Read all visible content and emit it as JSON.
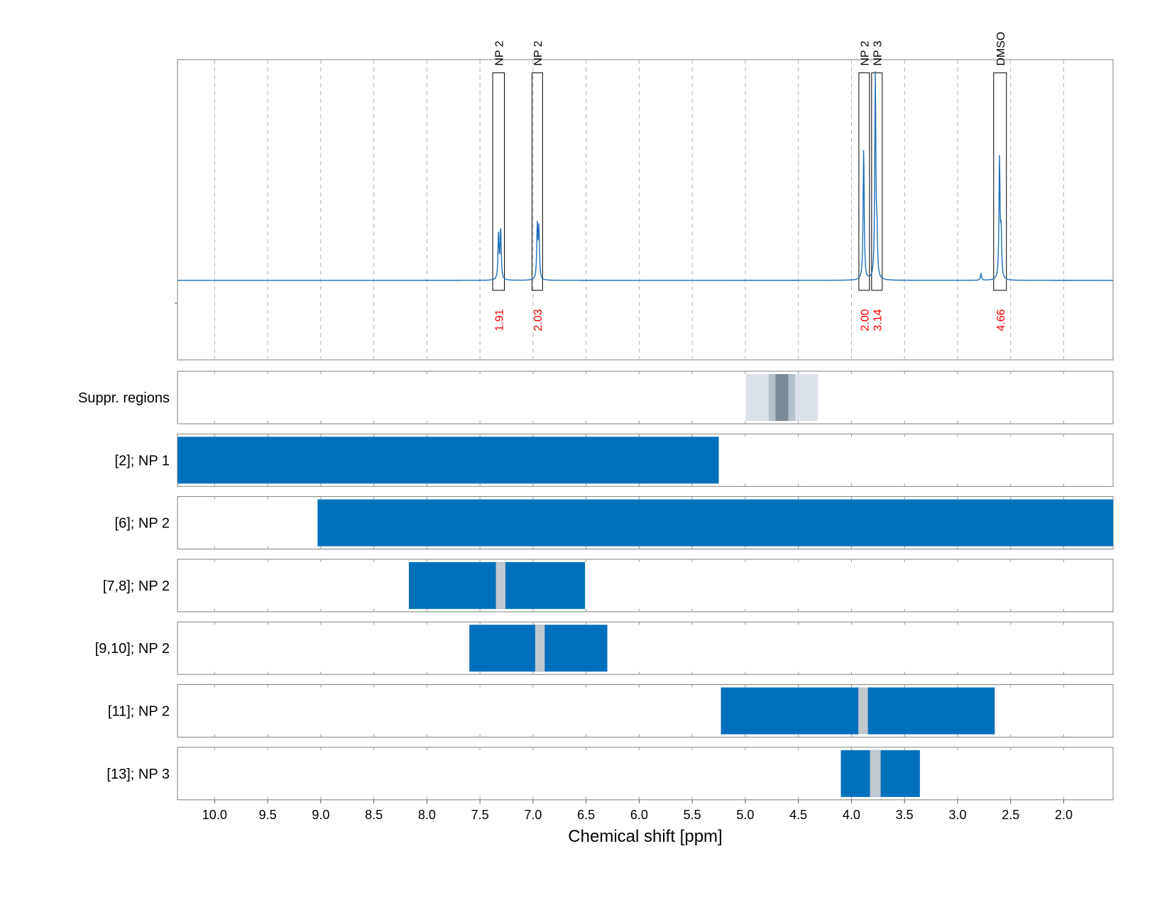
{
  "chart_data": {
    "type": "nmr-spectrum-with-tracks",
    "xlabel": "Chemical shift [ppm]",
    "xlim": [
      10.35,
      1.535
    ],
    "x_reversed": true,
    "x_ticks": [
      10.0,
      9.5,
      9.0,
      8.5,
      8.0,
      7.5,
      7.0,
      6.5,
      6.0,
      5.5,
      5.0,
      4.5,
      4.0,
      3.5,
      3.0,
      2.5,
      2.0
    ],
    "x_tick_labels": [
      "10.0",
      "9.5",
      "9.0",
      "8.5",
      "8.0",
      "7.5",
      "7.0",
      "6.5",
      "6.0",
      "5.5",
      "5.0",
      "4.5",
      "4.0",
      "3.5",
      "3.0",
      "2.5",
      "2.0"
    ],
    "grid": "vertical dashed",
    "colors": {
      "spectrum": "#1f6fb8",
      "bar": "#0070bb",
      "integral_label": "#ff0000",
      "peak_marker": "#c0c8d0",
      "suppr_light": "#dbe1e8",
      "suppr_mid": "#b5c1cb",
      "suppr_dark": "#7a8a97"
    },
    "spectrum": {
      "baseline": 0,
      "ylim": [
        -0.36,
        1.0
      ],
      "peaks": [
        {
          "ppm": 7.325,
          "height": 0.21
        },
        {
          "ppm": 7.305,
          "height": 0.23
        },
        {
          "ppm": 6.96,
          "height": 0.24
        },
        {
          "ppm": 6.945,
          "height": 0.225
        },
        {
          "ppm": 3.885,
          "height": 0.6
        },
        {
          "ppm": 3.775,
          "height": 0.93
        },
        {
          "ppm": 3.76,
          "height": 0.18
        },
        {
          "ppm": 2.78,
          "height": 0.03
        },
        {
          "ppm": 2.605,
          "height": 0.54
        },
        {
          "ppm": 2.59,
          "height": 0.2
        }
      ],
      "annotations": [
        {
          "label": "NP 2",
          "integral": "1.91",
          "range": [
            7.38,
            7.27
          ]
        },
        {
          "label": "NP 2",
          "integral": "2.03",
          "range": [
            7.01,
            6.91
          ]
        },
        {
          "label": "NP 2",
          "integral": "2.00",
          "range": [
            3.93,
            3.83
          ]
        },
        {
          "label": "NP 3",
          "integral": "3.14",
          "range": [
            3.81,
            3.71
          ]
        },
        {
          "label": "DMSO",
          "integral": "4.66",
          "range": [
            2.66,
            2.54
          ]
        }
      ]
    },
    "tracks": [
      {
        "label": "Suppr. regions",
        "suppression": [
          {
            "range": [
              4.995,
              4.315
            ],
            "level": "light"
          },
          {
            "range": [
              4.78,
              4.53
            ],
            "level": "mid"
          },
          {
            "range": [
              4.715,
              4.595
            ],
            "level": "dark"
          }
        ]
      },
      {
        "label": "[2]; NP 1",
        "bars": [
          [
            10.35,
            5.25
          ]
        ],
        "markers": []
      },
      {
        "label": "[6]; NP 2",
        "bars": [
          [
            9.03,
            1.535
          ]
        ],
        "markers": []
      },
      {
        "label": "[7,8]; NP 2",
        "bars": [
          [
            8.17,
            6.51
          ]
        ],
        "markers": [
          [
            7.35,
            7.26
          ]
        ]
      },
      {
        "label": "[9,10]; NP 2",
        "bars": [
          [
            7.6,
            6.3
          ]
        ],
        "markers": [
          [
            6.98,
            6.89
          ]
        ]
      },
      {
        "label": "[11]; NP 2",
        "bars": [
          [
            5.23,
            2.65
          ]
        ],
        "markers": [
          [
            3.935,
            3.845
          ]
        ]
      },
      {
        "label": "[13]; NP 3",
        "bars": [
          [
            4.1,
            3.355
          ]
        ],
        "markers": [
          [
            3.825,
            3.725
          ]
        ]
      }
    ]
  }
}
